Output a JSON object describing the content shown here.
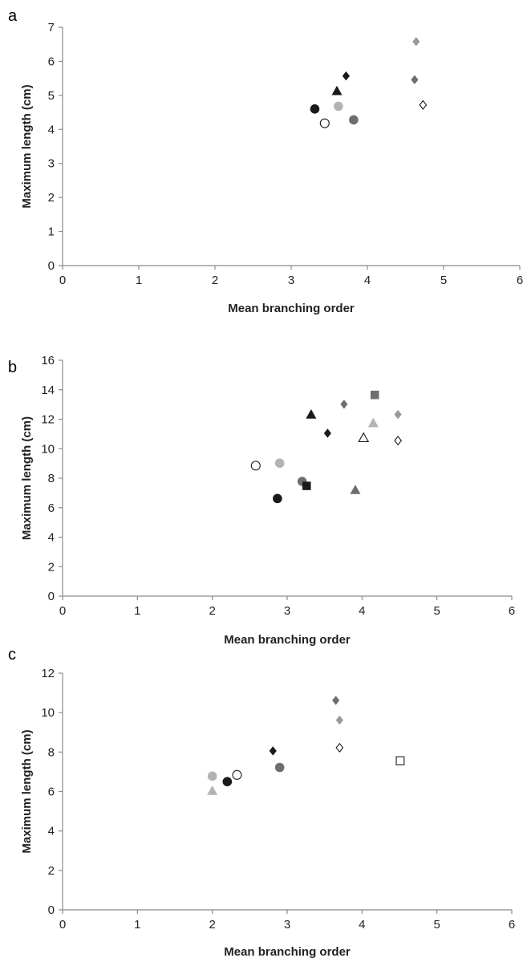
{
  "chart_data": [
    {
      "panel_label": "a",
      "type": "scatter",
      "xlabel": "Mean branching order",
      "ylabel": "Maximum length (cm)",
      "xlim": [
        0,
        6
      ],
      "ylim": [
        0,
        7
      ],
      "xticks": [
        "0",
        "1",
        "2",
        "3",
        "4",
        "5",
        "6"
      ],
      "yticks": [
        "0",
        "1",
        "2",
        "3",
        "4",
        "5",
        "6",
        "7"
      ],
      "grid": false,
      "points": [
        {
          "x": 3.31,
          "y": 4.6,
          "marker": "circle",
          "fill": "#1a1a1a"
        },
        {
          "x": 3.44,
          "y": 4.18,
          "marker": "circle",
          "fill": "none"
        },
        {
          "x": 3.62,
          "y": 4.68,
          "marker": "circle",
          "fill": "#b3b3b3"
        },
        {
          "x": 3.82,
          "y": 4.28,
          "marker": "circle",
          "fill": "#6e6e6e"
        },
        {
          "x": 3.6,
          "y": 5.12,
          "marker": "triangle",
          "fill": "#1a1a1a"
        },
        {
          "x": 3.72,
          "y": 5.57,
          "marker": "diamond",
          "fill": "#1a1a1a"
        },
        {
          "x": 4.62,
          "y": 5.46,
          "marker": "diamond",
          "fill": "#6e6e6e"
        },
        {
          "x": 4.64,
          "y": 6.58,
          "marker": "diamond",
          "fill": "#999999"
        },
        {
          "x": 4.73,
          "y": 4.72,
          "marker": "diamond",
          "fill": "none"
        }
      ]
    },
    {
      "panel_label": "b",
      "type": "scatter",
      "xlabel": "Mean branching order",
      "ylabel": "Maximum length (cm)",
      "xlim": [
        0,
        6
      ],
      "ylim": [
        0,
        16
      ],
      "xticks": [
        "0",
        "1",
        "2",
        "3",
        "4",
        "5",
        "6"
      ],
      "yticks": [
        "0",
        "2",
        "4",
        "6",
        "8",
        "10",
        "12",
        "14",
        "16"
      ],
      "grid": false,
      "points": [
        {
          "x": 2.58,
          "y": 8.85,
          "marker": "circle",
          "fill": "none"
        },
        {
          "x": 2.9,
          "y": 9.02,
          "marker": "circle",
          "fill": "#b3b3b3"
        },
        {
          "x": 2.87,
          "y": 6.62,
          "marker": "circle",
          "fill": "#1a1a1a"
        },
        {
          "x": 3.2,
          "y": 7.78,
          "marker": "circle",
          "fill": "#6e6e6e"
        },
        {
          "x": 3.26,
          "y": 7.48,
          "marker": "square",
          "fill": "#1a1a1a"
        },
        {
          "x": 3.32,
          "y": 12.3,
          "marker": "triangle",
          "fill": "#1a1a1a"
        },
        {
          "x": 3.54,
          "y": 11.05,
          "marker": "diamond",
          "fill": "#1a1a1a"
        },
        {
          "x": 3.76,
          "y": 13.02,
          "marker": "diamond",
          "fill": "#6e6e6e"
        },
        {
          "x": 3.91,
          "y": 7.18,
          "marker": "triangle",
          "fill": "#6e6e6e"
        },
        {
          "x": 4.02,
          "y": 10.72,
          "marker": "triangle",
          "fill": "none"
        },
        {
          "x": 4.15,
          "y": 11.72,
          "marker": "triangle",
          "fill": "#b3b3b3"
        },
        {
          "x": 4.17,
          "y": 13.65,
          "marker": "square",
          "fill": "#6e6e6e"
        },
        {
          "x": 4.48,
          "y": 12.32,
          "marker": "diamond",
          "fill": "#999999"
        },
        {
          "x": 4.48,
          "y": 10.55,
          "marker": "diamond",
          "fill": "none"
        }
      ]
    },
    {
      "panel_label": "c",
      "type": "scatter",
      "xlabel": "Mean branching order",
      "ylabel": "Maximum length (cm)",
      "xlim": [
        0,
        6
      ],
      "ylim": [
        0,
        12
      ],
      "xticks": [
        "0",
        "1",
        "2",
        "3",
        "4",
        "5",
        "6"
      ],
      "yticks": [
        "0",
        "2",
        "4",
        "6",
        "8",
        "10",
        "12"
      ],
      "grid": false,
      "points": [
        {
          "x": 2.0,
          "y": 6.78,
          "marker": "circle",
          "fill": "#b3b3b3"
        },
        {
          "x": 2.0,
          "y": 6.02,
          "marker": "triangle",
          "fill": "#b3b3b3"
        },
        {
          "x": 2.2,
          "y": 6.5,
          "marker": "circle",
          "fill": "#1a1a1a"
        },
        {
          "x": 2.33,
          "y": 6.84,
          "marker": "circle",
          "fill": "none"
        },
        {
          "x": 2.81,
          "y": 8.06,
          "marker": "diamond",
          "fill": "#1a1a1a"
        },
        {
          "x": 2.9,
          "y": 7.22,
          "marker": "circle",
          "fill": "#6e6e6e"
        },
        {
          "x": 3.65,
          "y": 10.62,
          "marker": "diamond",
          "fill": "#6e6e6e"
        },
        {
          "x": 3.7,
          "y": 9.62,
          "marker": "diamond",
          "fill": "#999999"
        },
        {
          "x": 3.7,
          "y": 8.22,
          "marker": "diamond",
          "fill": "none"
        },
        {
          "x": 4.51,
          "y": 7.56,
          "marker": "square",
          "fill": "none"
        }
      ]
    }
  ]
}
